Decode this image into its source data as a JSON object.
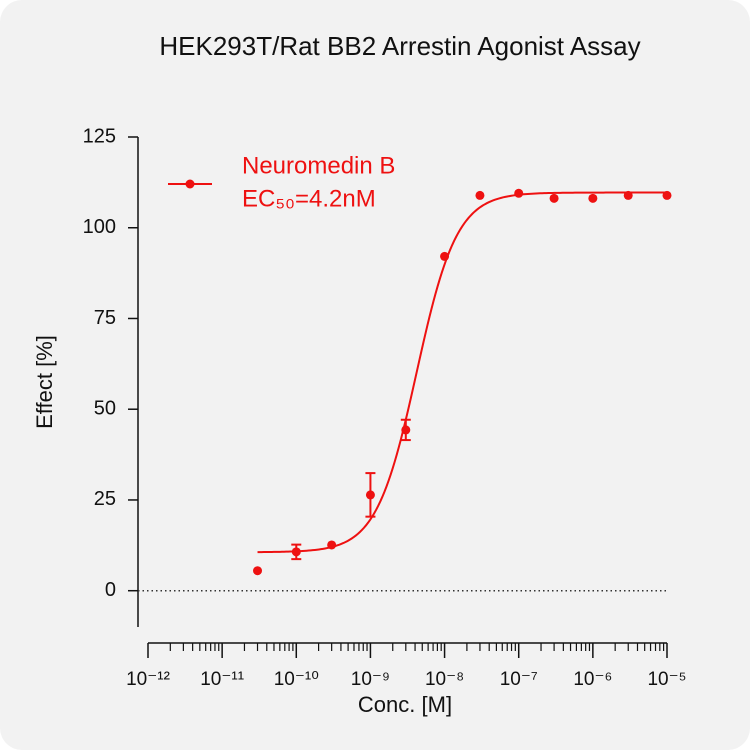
{
  "chart_data": {
    "type": "dose-response",
    "title": "HEK293T/Rat BB2 Arrestin Agonist Assay",
    "xlabel": "Conc. [M]",
    "ylabel": "Effect  [%]",
    "xscale": "log",
    "xlim": [
      1e-12,
      1e-05
    ],
    "xticks": [
      {
        "value": 1e-12,
        "label": "10⁻¹²"
      },
      {
        "value": 1e-11,
        "label": "10⁻¹¹"
      },
      {
        "value": 1e-10,
        "label": "10⁻¹⁰"
      },
      {
        "value": 1e-09,
        "label": "10⁻⁹"
      },
      {
        "value": 1e-08,
        "label": "10⁻⁸"
      },
      {
        "value": 1e-07,
        "label": "10⁻⁷"
      },
      {
        "value": 1e-06,
        "label": "10⁻⁶"
      },
      {
        "value": 1e-05,
        "label": "10⁻⁵"
      }
    ],
    "ylim": [
      -10,
      125
    ],
    "yticks": [
      0,
      25,
      50,
      75,
      100,
      125
    ],
    "hline": 0,
    "legend": "upper left",
    "x": [
      3e-11,
      1e-10,
      3e-10,
      1e-09,
      3e-09,
      1e-08,
      3e-08,
      1e-07,
      3e-07,
      1e-06,
      3e-06,
      1e-05
    ],
    "series": [
      {
        "name": "Neuromedin B",
        "annotation": "EC₅₀=4.2nM",
        "color": "#ee1111",
        "values": [
          5.5,
          10.7,
          12.6,
          26.4,
          44.3,
          92.1,
          108.9,
          109.5,
          108.1,
          108.1,
          108.9,
          108.9
        ],
        "errors": [
          null,
          2,
          null,
          6,
          2.8,
          null,
          null,
          null,
          null,
          null,
          null,
          null
        ],
        "fit": {
          "bottom": 10.6,
          "top": 109.7,
          "ec50": 4.2e-09,
          "hill": 1.6
        }
      }
    ]
  }
}
